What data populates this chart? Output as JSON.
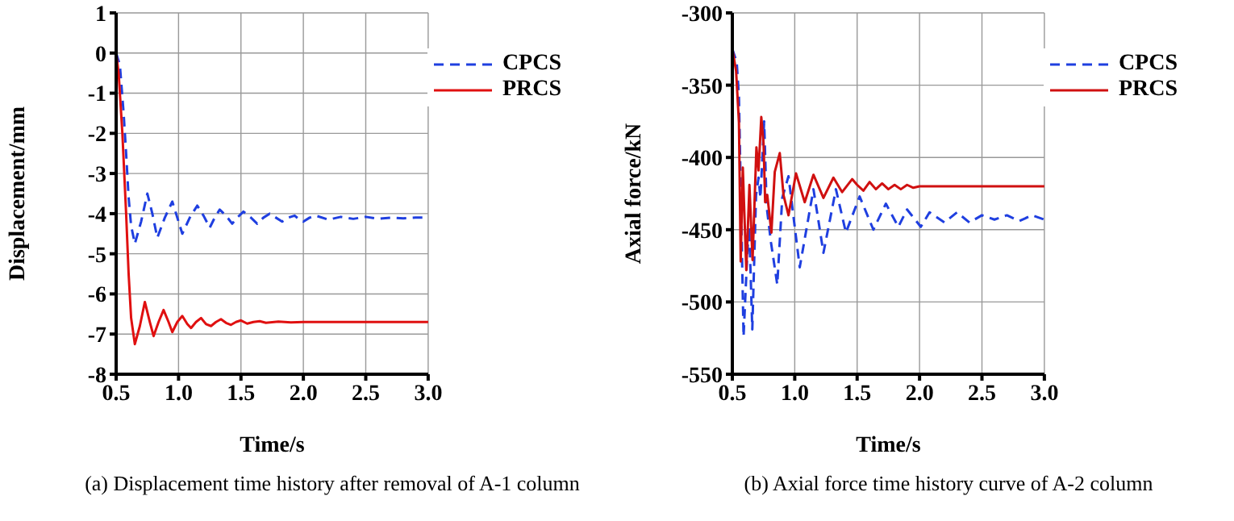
{
  "chart_data": [
    {
      "type": "line",
      "xlabel": "Time/s",
      "ylabel": "Displacement/mm",
      "annotations": [
        "(a) Displacement time history after removal of A-1 column"
      ],
      "xlim": [
        0.5,
        3.0
      ],
      "xticks": [
        0.5,
        {
          "value": 1,
          "label": "1.0"
        },
        1.5,
        {
          "value": 2,
          "label": "2.0"
        },
        2.5,
        {
          "value": 3,
          "label": "3.0"
        }
      ],
      "ylim": [
        -8,
        1
      ],
      "yticks": [
        -8,
        -7,
        -6,
        -5,
        -4,
        -3,
        -2,
        -1,
        0,
        1
      ],
      "grid": true,
      "legend": "top right",
      "marker": "none",
      "series": [
        {
          "name": "CPCS",
          "color": "#1f3fe0",
          "line_style": "dashed",
          "x": [
            0.5,
            0.53,
            0.56,
            0.58,
            0.6,
            0.62,
            0.65,
            0.7,
            0.75,
            0.79,
            0.83,
            0.89,
            0.95,
            0.99,
            1.03,
            1.09,
            1.15,
            1.2,
            1.25,
            1.29,
            1.33,
            1.38,
            1.43,
            1.47,
            1.52,
            1.58,
            1.63,
            1.68,
            1.73,
            1.78,
            1.83,
            1.88,
            1.93,
            1.97,
            2.0,
            2.05,
            2.1,
            2.2,
            2.3,
            2.4,
            2.5,
            2.6,
            2.7,
            2.8,
            2.9,
            3.0
          ],
          "values": [
            0,
            -0.3,
            -1.5,
            -2.5,
            -3.6,
            -4.3,
            -4.75,
            -4.2,
            -3.5,
            -4.0,
            -4.6,
            -4.1,
            -3.7,
            -4.1,
            -4.5,
            -4.1,
            -3.8,
            -4.05,
            -4.35,
            -4.1,
            -3.9,
            -4.05,
            -4.25,
            -4.1,
            -3.95,
            -4.1,
            -4.25,
            -4.1,
            -4.0,
            -4.1,
            -4.2,
            -4.1,
            -4.05,
            -4.15,
            -4.2,
            -4.1,
            -4.05,
            -4.15,
            -4.08,
            -4.13,
            -4.08,
            -4.13,
            -4.1,
            -4.12,
            -4.1,
            -4.1
          ]
        },
        {
          "name": "PRCS",
          "color": "#e01010",
          "line_style": "solid",
          "x": [
            0.5,
            0.52,
            0.55,
            0.58,
            0.6,
            0.62,
            0.65,
            0.69,
            0.73,
            0.77,
            0.8,
            0.84,
            0.88,
            0.92,
            0.95,
            0.99,
            1.03,
            1.07,
            1.1,
            1.14,
            1.18,
            1.22,
            1.26,
            1.3,
            1.34,
            1.38,
            1.42,
            1.46,
            1.5,
            1.55,
            1.6,
            1.65,
            1.7,
            1.8,
            1.9,
            2.0,
            2.5,
            3.0
          ],
          "values": [
            0,
            -0.5,
            -2,
            -4,
            -5.5,
            -6.6,
            -7.25,
            -6.8,
            -6.2,
            -6.7,
            -7.05,
            -6.7,
            -6.4,
            -6.7,
            -6.95,
            -6.7,
            -6.55,
            -6.75,
            -6.85,
            -6.7,
            -6.6,
            -6.75,
            -6.8,
            -6.7,
            -6.63,
            -6.72,
            -6.77,
            -6.7,
            -6.66,
            -6.74,
            -6.7,
            -6.68,
            -6.72,
            -6.69,
            -6.71,
            -6.7,
            -6.7,
            -6.7
          ]
        }
      ]
    },
    {
      "type": "line",
      "xlabel": "Time/s",
      "ylabel": "Axial force/kN",
      "annotations": [
        "(b) Axial force time history curve of A-2 column"
      ],
      "xlim": [
        0.5,
        3.0
      ],
      "xticks": [
        0.5,
        {
          "value": 1,
          "label": "1.0"
        },
        1.5,
        {
          "value": 2,
          "label": "2.0"
        },
        2.5,
        {
          "value": 3,
          "label": "3.0"
        }
      ],
      "ylim": [
        -550,
        -300
      ],
      "yticks": [
        -550,
        -500,
        -450,
        -400,
        -350,
        -300
      ],
      "grid": true,
      "legend": "top right",
      "marker": "none",
      "series": [
        {
          "name": "CPCS",
          "color": "#1f3fe0",
          "line_style": "dashed",
          "x": [
            0.5,
            0.535,
            0.553,
            0.59,
            0.62,
            0.635,
            0.66,
            0.69,
            0.71,
            0.725,
            0.755,
            0.775,
            0.81,
            0.86,
            0.9,
            0.95,
            1.04,
            1.15,
            1.23,
            1.33,
            1.41,
            1.52,
            1.63,
            1.73,
            1.83,
            1.9,
            2.01,
            2.08,
            2.2,
            2.3,
            2.4,
            2.5,
            2.6,
            2.7,
            2.8,
            2.9,
            3.0
          ],
          "values": [
            -325,
            -334,
            -358,
            -524,
            -466,
            -448,
            -519,
            -426,
            -414,
            -428,
            -375,
            -434,
            -459,
            -488,
            -428,
            -413,
            -476,
            -422,
            -466,
            -422,
            -452,
            -427,
            -450,
            -432,
            -448,
            -436,
            -448,
            -438,
            -445,
            -438,
            -445,
            -440,
            -443,
            -440,
            -444,
            -440,
            -443
          ]
        },
        {
          "name": "PRCS",
          "color": "#d01010",
          "line_style": "solid",
          "x": [
            0.5,
            0.53,
            0.553,
            0.567,
            0.584,
            0.612,
            0.637,
            0.662,
            0.693,
            0.71,
            0.732,
            0.75,
            0.763,
            0.78,
            0.813,
            0.84,
            0.88,
            0.91,
            0.95,
            1.01,
            1.08,
            1.15,
            1.23,
            1.31,
            1.38,
            1.46,
            1.5,
            1.55,
            1.6,
            1.65,
            1.7,
            1.75,
            1.8,
            1.85,
            1.9,
            1.95,
            2.0,
            2.5,
            3.0
          ],
          "values": [
            -325,
            -340,
            -376,
            -472,
            -407,
            -478,
            -419,
            -471,
            -393,
            -409,
            -372,
            -390,
            -431,
            -426,
            -452,
            -410,
            -397,
            -426,
            -440,
            -411,
            -431,
            -412,
            -428,
            -414,
            -424,
            -415,
            -419,
            -423,
            -417,
            -422,
            -418,
            -422,
            -419,
            -422,
            -419,
            -421,
            -420,
            -420,
            -420
          ]
        }
      ]
    }
  ]
}
